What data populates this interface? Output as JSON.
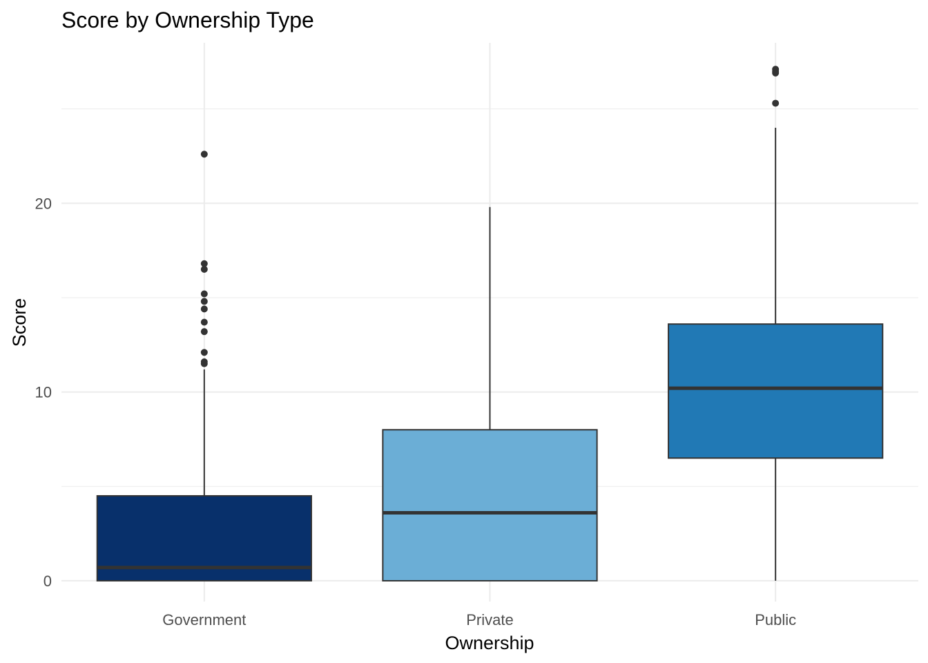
{
  "chart_data": {
    "type": "boxplot",
    "title": "Score by Ownership Type",
    "xlabel": "Ownership",
    "ylabel": "Score",
    "ylim": [
      -1.1,
      28.5
    ],
    "yticks": [
      0,
      10,
      20
    ],
    "grid": true,
    "legend": "none",
    "categories": [
      "Government",
      "Private",
      "Public"
    ],
    "colors": {
      "Government": "#08306b",
      "Private": "#6baed6",
      "Public": "#2179b5",
      "grid": "#ebebeb",
      "outline": "#333333"
    },
    "series": [
      {
        "category": "Government",
        "whisker_low": 0,
        "q1": 0,
        "median": 0.7,
        "q3": 4.5,
        "whisker_high": 11.2,
        "outliers": [
          11.5,
          11.6,
          12.1,
          13.2,
          13.7,
          14.4,
          14.8,
          15.2,
          16.5,
          16.8,
          22.6
        ]
      },
      {
        "category": "Private",
        "whisker_low": 0,
        "q1": 0,
        "median": 3.6,
        "q3": 8.0,
        "whisker_high": 19.8,
        "outliers": []
      },
      {
        "category": "Public",
        "whisker_low": 0,
        "q1": 6.5,
        "median": 10.2,
        "q3": 13.6,
        "whisker_high": 24.0,
        "outliers": [
          25.3,
          26.9,
          27.0,
          27.1
        ]
      }
    ]
  }
}
